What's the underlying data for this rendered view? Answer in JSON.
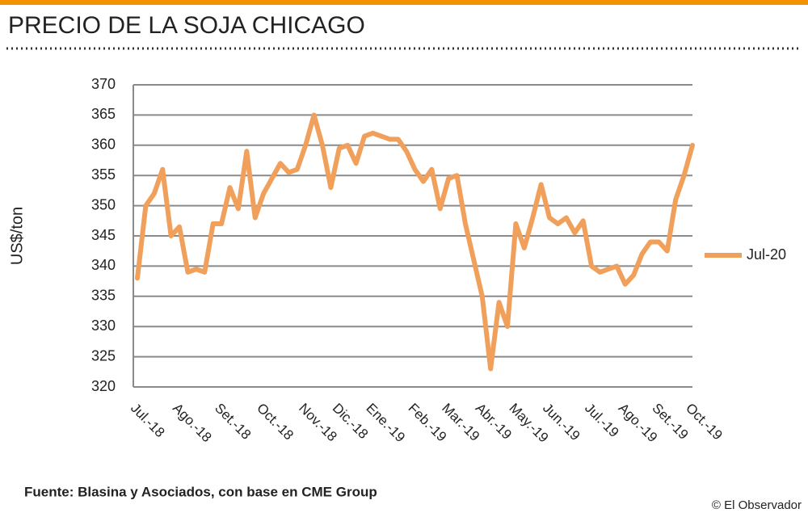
{
  "chart_data": {
    "type": "line",
    "title": "PRECIO DE LA SOJA CHICAGO",
    "ylabel": "US$/ton",
    "source": "Fuente: Blasina  y Asociados,  con base  en CME Group",
    "credit": "© El Observador",
    "categories": [
      "Jul.-18",
      null,
      null,
      null,
      null,
      "Ago.-18",
      null,
      null,
      null,
      null,
      "Set.-18",
      null,
      null,
      null,
      null,
      "Oct.-18",
      null,
      null,
      null,
      null,
      "Nov.-18",
      null,
      null,
      null,
      "Dic.-18",
      null,
      null,
      null,
      "Ene.-19",
      null,
      null,
      null,
      null,
      "Feb.-19",
      null,
      null,
      null,
      "Mar.-19",
      null,
      null,
      null,
      "Abr.-19",
      null,
      null,
      null,
      "May.-19",
      null,
      null,
      null,
      "Jun.-19",
      null,
      null,
      null,
      null,
      "Jul.-19",
      null,
      null,
      null,
      "Ago.-19",
      null,
      null,
      null,
      "Set.-19",
      null,
      null,
      null,
      "Oct.-19"
    ],
    "series": [
      {
        "name": "Jul-20",
        "color": "#f0a05a",
        "values": [
          338,
          350,
          352,
          356,
          345,
          346.5,
          339,
          339.5,
          339,
          347,
          347,
          353,
          349.5,
          359,
          348,
          352,
          354.5,
          357,
          355.5,
          356,
          360,
          365,
          360,
          353,
          359.5,
          360,
          357,
          361.5,
          362,
          361.5,
          361,
          361,
          359,
          356,
          354,
          356,
          349.5,
          354.5,
          355,
          347,
          341,
          335,
          323,
          334,
          330,
          347,
          343,
          348,
          353.5,
          348,
          347,
          348,
          345.5,
          347.5,
          340,
          339,
          339.5,
          340,
          337,
          338.5,
          342,
          344,
          344,
          342.5,
          351,
          355,
          360
        ]
      }
    ],
    "ylim": [
      320,
      370
    ],
    "yticks": [
      320,
      325,
      330,
      335,
      340,
      345,
      350,
      355,
      360,
      365,
      370
    ],
    "grid": true,
    "legend": "right"
  }
}
